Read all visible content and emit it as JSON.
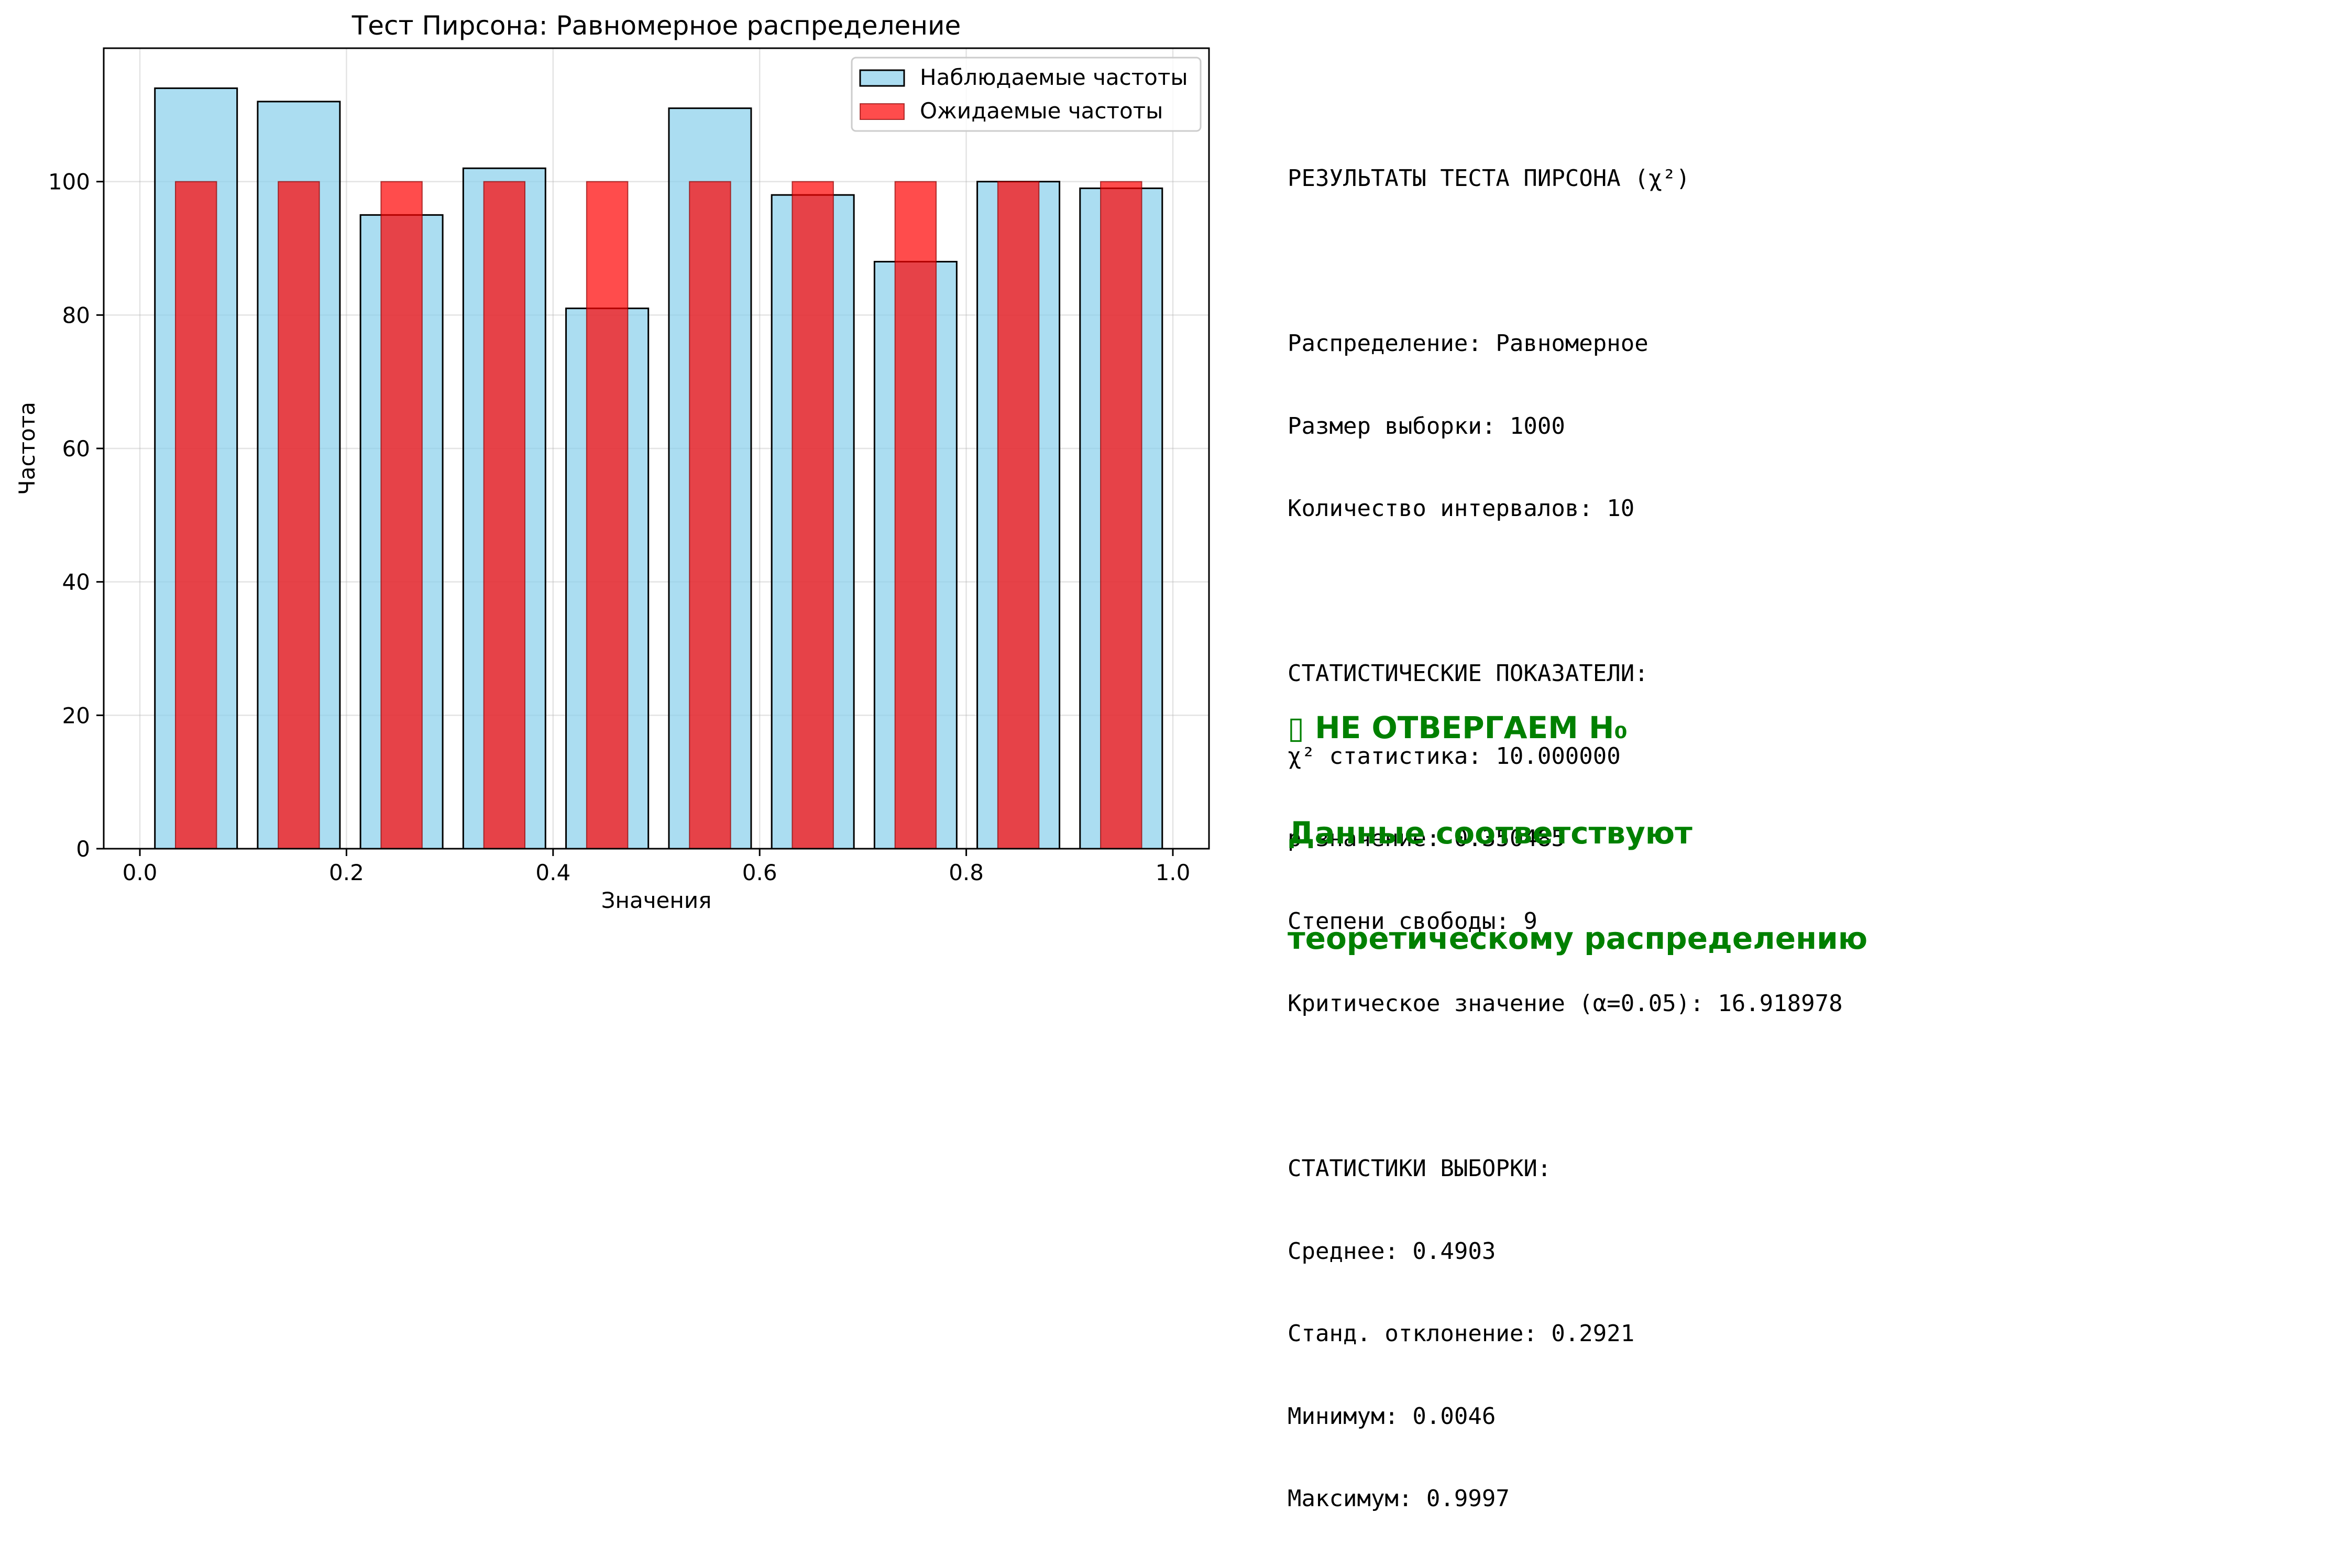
{
  "colors": {
    "observed_fill": "#87ceeb",
    "observed_edge": "#000000",
    "expected_fill": "#ff0000",
    "grid": "#b0b0b0",
    "verdict": "#008000"
  },
  "chart_data": {
    "type": "bar",
    "title": "Тест Пирсона: Равномерное распределение",
    "xlabel": "Значения",
    "ylabel": "Частота",
    "xlim": [
      -0.035,
      1.035
    ],
    "ylim": [
      0,
      120
    ],
    "grid": true,
    "legend_placement": "top-right",
    "x_ticks": [
      0.0,
      0.2,
      0.4,
      0.6,
      0.8,
      1.0
    ],
    "x_tick_labels": [
      "0.0",
      "0.2",
      "0.4",
      "0.6",
      "0.8",
      "1.0"
    ],
    "y_ticks": [
      0,
      20,
      40,
      60,
      80,
      100
    ],
    "y_tick_labels": [
      "0",
      "20",
      "40",
      "60",
      "80",
      "100"
    ],
    "bin_edges": [
      0.0046,
      0.1041,
      0.2036,
      0.3031,
      0.4026,
      0.5022,
      0.6017,
      0.7012,
      0.8007,
      0.9002,
      0.9997
    ],
    "series": [
      {
        "name": "Наблюдаемые частоты",
        "values": [
          114,
          112,
          95,
          102,
          81,
          111,
          98,
          88,
          100,
          99
        ]
      },
      {
        "name": "Ожидаемые частоты",
        "values": [
          100,
          100,
          100,
          100,
          100,
          100,
          100,
          100,
          100,
          100
        ]
      }
    ]
  },
  "results": {
    "lines": [
      "РЕЗУЛЬТАТЫ ТЕСТА ПИРСОНА (χ²)",
      "",
      "Распределение: Равномерное",
      "Размер выборки: 1000",
      "Количество интервалов: 10",
      "",
      "СТАТИСТИЧЕСКИЕ ПОКАЗАТЕЛИ:",
      "χ² статистика: 10.000000",
      "p-значение: 0.350485",
      "Степени свободы: 9",
      "Критическое значение (α=0.05): 16.918978",
      "",
      "СТАТИСТИКИ ВЫБОРКИ:",
      "Среднее: 0.4903",
      "Станд. отклонение: 0.2921",
      "Минимум: 0.0046",
      "Максимум: 0.9997"
    ]
  },
  "verdict": {
    "icon": "▯",
    "line1": "НЕ ОТВЕРГАЕМ H₀",
    "line2": "Данные соответствуют",
    "line3": "теоретическому распределению"
  }
}
